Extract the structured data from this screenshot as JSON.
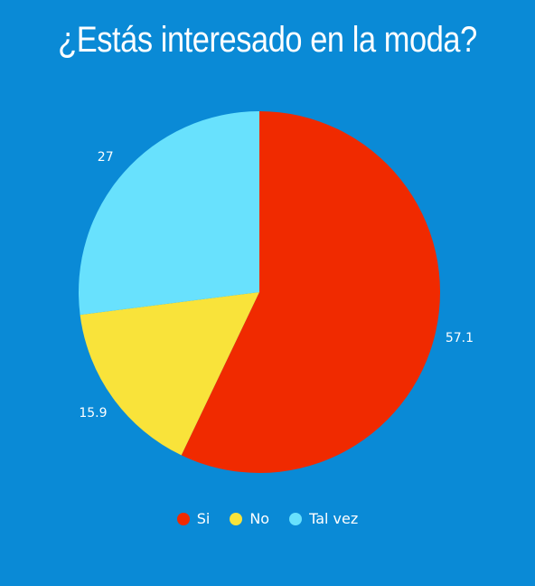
{
  "chart_data": {
    "type": "pie",
    "title": "¿Estás interesado en la moda?",
    "categories": [
      "Si",
      "No",
      "Tal vez"
    ],
    "values": [
      57.1,
      15.9,
      27
    ],
    "colors": [
      "#f02a00",
      "#f9e33a",
      "#68e1fd"
    ],
    "legend_position": "bottom"
  },
  "style": {
    "background": "#0a8ad6",
    "text_color": "#ffffff"
  }
}
